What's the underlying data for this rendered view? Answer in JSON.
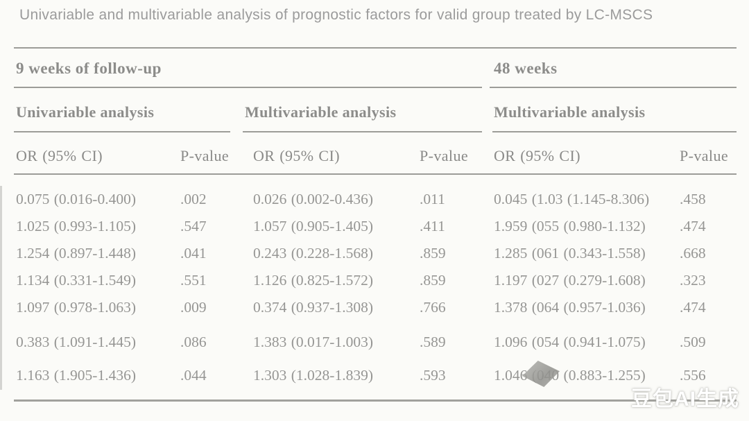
{
  "title": "Univariable and multivariable analysis of prognostic factors for valid group treated by LC-MSCS",
  "table": {
    "section_left": "9 weeks of follow-up",
    "section_right": "48 weeks",
    "analysis_headers": [
      "Univariable analysis",
      "Multivariable analysis",
      "Multivariable analysis"
    ],
    "col_or": "OR (95% CI)",
    "col_p": "P-value",
    "rows": [
      {
        "or1": "0.075 (0.016-0.400)",
        "p1": ".002",
        "or2": "0.026 (0.002-0.436)",
        "p2": ".011",
        "or3": "0.045 (1.03 (1.145-8.306)",
        "p3": ".458"
      },
      {
        "or1": "1.025 (0.993-1.105)",
        "p1": ".547",
        "or2": "1.057 (0.905-1.405)",
        "p2": ".411",
        "or3": "1.959 (055 (0.980-1.132)",
        "p3": ".474"
      },
      {
        "or1": "1.254 (0.897-1.448)",
        "p1": ".041",
        "or2": "0.243 (0.228-1.568)",
        "p2": ".859",
        "or3": "1.285 (061 (0.343-1.558)",
        "p3": ".668"
      },
      {
        "or1": "1.134 (0.331-1.549)",
        "p1": ".551",
        "or2": "1.126 (0.825-1.572)",
        "p2": ".859",
        "or3": "1.197 (027 (0.279-1.608)",
        "p3": ".323"
      },
      {
        "or1": "1.097 (0.978-1.063)",
        "p1": ".009",
        "or2": "0.374 (0.937-1.308)",
        "p2": ".766",
        "or3": "1.378 (064 (0.957-1.036)",
        "p3": ".474"
      },
      {
        "or1": "0.383 (1.091-1.445)",
        "p1": ".086",
        "or2": "1.383 (0.017-1.003)",
        "p2": ".589",
        "or3": "1.096 (054 (0.941-1.075)",
        "p3": ".509"
      },
      {
        "or1": "1.163 (1.905-1.436)",
        "p1": ".044",
        "or2": "1.303 (1.028-1.839)",
        "p2": ".593",
        "or3": "1.046 (040 (0.883-1.255)",
        "p3": ".556"
      }
    ]
  },
  "watermark": "豆包AI生成",
  "colors": {
    "text": "#8e8e8c",
    "line": "#9c9c98",
    "background": "#fbfbf8"
  }
}
